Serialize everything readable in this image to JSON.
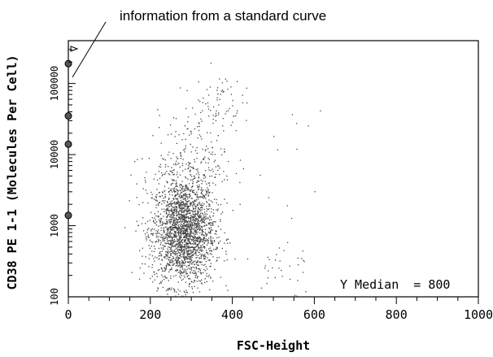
{
  "chart_data": {
    "type": "scatter",
    "title": "",
    "xlabel": "FSC-Height",
    "ylabel": "CD38 PE 1-1 (Molecules Per Cell)",
    "xlim": [
      0,
      1000
    ],
    "ylim": [
      100,
      400000
    ],
    "yscale": "log",
    "x_ticks": [
      "0",
      "200",
      "400",
      "600",
      "800",
      "1000"
    ],
    "y_ticks": [
      {
        "value": 100,
        "label": "100"
      },
      {
        "value": 1000,
        "label": "1000"
      },
      {
        "value": 10000,
        "label": "10000"
      },
      {
        "value": 100000,
        "label": "100000"
      }
    ],
    "annotation": "information from a standard curve",
    "median_label": "Y Median  = 800",
    "calibration_points": [
      1400,
      14000,
      35000,
      190000
    ],
    "point_color": "#444444",
    "grid": false,
    "legend": "none"
  }
}
